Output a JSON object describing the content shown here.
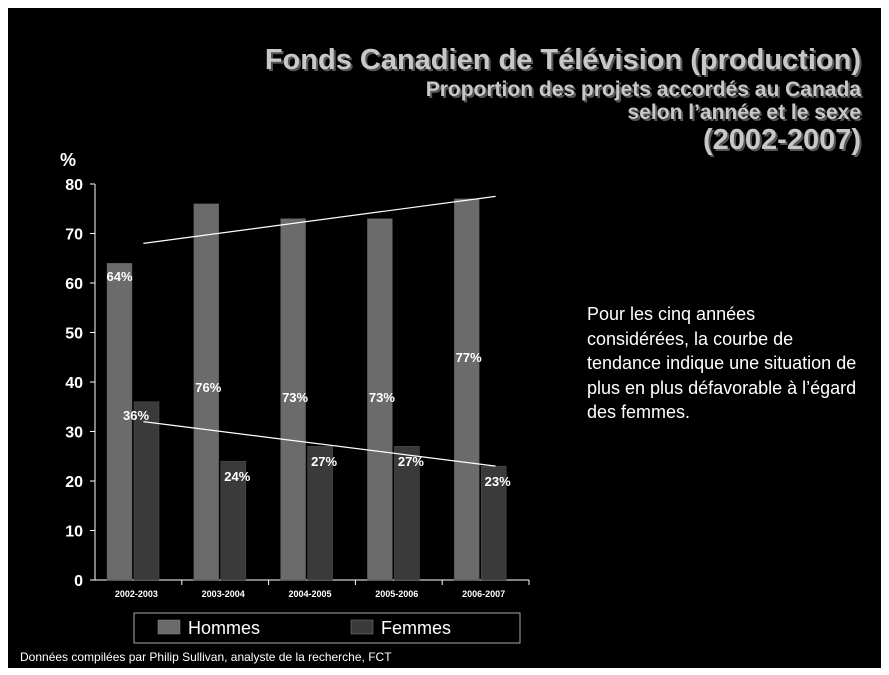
{
  "slide": {
    "title_line1": "Fonds Canadien de Télévision (production)",
    "title_line2": "Proportion des projets accordés au Canada",
    "title_line3": "selon l’année et le sexe",
    "title_line4": "(2002-2007)",
    "commentary": "Pour les cinq années considérées, la courbe de tendance indique une situation de plus en plus défavorable à l’égard des femmes.",
    "footnote": "Données compilées par Philip Sullivan, analyste de la recherche,  FCT"
  },
  "chart_data": {
    "type": "bar",
    "title": "",
    "ylabel": "%",
    "xlabel": "",
    "ylim": [
      0,
      80
    ],
    "yticks": [
      0,
      10,
      20,
      30,
      40,
      50,
      60,
      70,
      80
    ],
    "grid": false,
    "legend_position": "bottom",
    "categories": [
      "2002-2003",
      "2003-2004",
      "2004-2005",
      "2005-2006",
      "2006-2007"
    ],
    "series": [
      {
        "name": "Hommes",
        "values": [
          64,
          76,
          73,
          73,
          77
        ],
        "labels": [
          "64%",
          "76%",
          "73%",
          "73%",
          "77%"
        ],
        "color": "#6b6b6b"
      },
      {
        "name": "Femmes",
        "values": [
          36,
          24,
          27,
          27,
          23
        ],
        "labels": [
          "36%",
          "24%",
          "27%",
          "27%",
          "23%"
        ],
        "color": "#3a3a3a"
      }
    ],
    "trendlines": [
      {
        "series": "Hommes",
        "start": 68,
        "end": 77.5,
        "color": "#ffffff"
      },
      {
        "series": "Femmes",
        "start": 32,
        "end": 23,
        "color": "#ffffff"
      }
    ]
  }
}
